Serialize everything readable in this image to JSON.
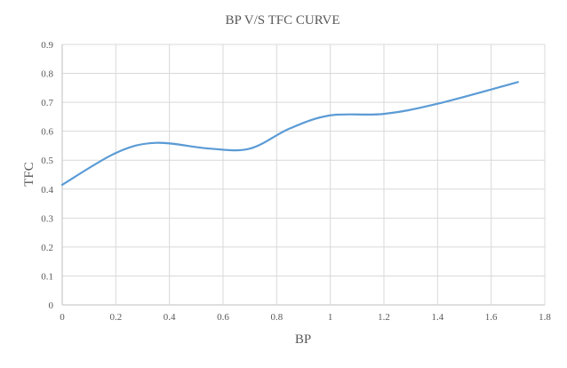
{
  "chart_data": {
    "type": "line",
    "title": "BP V/S TFC CURVE",
    "xlabel": "BP",
    "ylabel": "TFC",
    "xlim": [
      0,
      1.8
    ],
    "ylim": [
      0,
      0.9
    ],
    "x_ticks": [
      "0",
      "0.2",
      "0.4",
      "0.6",
      "0.8",
      "1",
      "1.2",
      "1.4",
      "1.6",
      "1.8"
    ],
    "y_ticks": [
      "0",
      "0.1",
      "0.2",
      "0.3",
      "0.4",
      "0.5",
      "0.6",
      "0.7",
      "0.8",
      "0.9"
    ],
    "grid": "horizontal-and-vertical",
    "legend": "none",
    "smooth": true,
    "series": [
      {
        "color": "#5b9bd5",
        "x": [
          0,
          0.2,
          0.35,
          0.55,
          0.7,
          0.85,
          1.0,
          1.2,
          1.4,
          1.7
        ],
        "y": [
          0.415,
          0.525,
          0.56,
          0.54,
          0.54,
          0.61,
          0.655,
          0.66,
          0.695,
          0.77
        ]
      }
    ]
  }
}
